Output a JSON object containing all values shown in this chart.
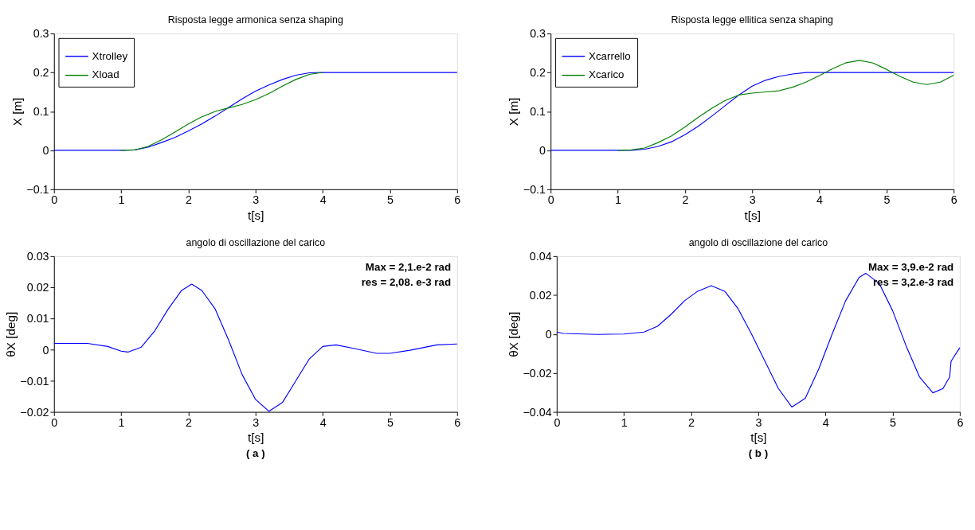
{
  "chart_data": [
    {
      "type": "line",
      "title": "Risposta legge armonica senza shaping",
      "xlabel": "t[s]",
      "ylabel": "X [m]",
      "xlim": [
        0,
        6
      ],
      "xticks": [
        0,
        1,
        2,
        3,
        4,
        5,
        6
      ],
      "ylim": [
        -0.1,
        0.3
      ],
      "yticks": [
        -0.1,
        0,
        0.1,
        0.2,
        0.3
      ],
      "grid": false,
      "legend": "top left",
      "x": [
        0,
        0.5,
        1,
        1.2,
        1.4,
        1.6,
        1.8,
        2.0,
        2.2,
        2.4,
        2.6,
        2.8,
        3.0,
        3.2,
        3.4,
        3.6,
        3.8,
        4.0,
        5.0,
        6.0
      ],
      "series": [
        {
          "name": "Xtrolley",
          "color": "#0000ff",
          "values": [
            0,
            0,
            0,
            0.001,
            0.008,
            0.02,
            0.033,
            0.05,
            0.068,
            0.088,
            0.11,
            0.132,
            0.152,
            0.168,
            0.182,
            0.193,
            0.199,
            0.2,
            0.2,
            0.2
          ]
        },
        {
          "name": "Xload",
          "color": "#008000",
          "values": [
            null,
            null,
            0,
            0.001,
            0.01,
            0.027,
            0.047,
            0.068,
            0.086,
            0.1,
            0.109,
            0.118,
            0.13,
            0.146,
            0.165,
            0.182,
            0.195,
            0.2,
            null,
            null
          ]
        }
      ]
    },
    {
      "type": "line",
      "title": "Risposta legge ellitica senza shaping",
      "xlabel": "t[s]",
      "ylabel": "X [m]",
      "xlim": [
        0,
        6
      ],
      "xticks": [
        0,
        1,
        2,
        3,
        4,
        5,
        6
      ],
      "ylim": [
        -0.1,
        0.3
      ],
      "yticks": [
        -0.1,
        0,
        0.1,
        0.2,
        0.3
      ],
      "grid": false,
      "legend": "top left",
      "x": [
        0,
        0.5,
        1.0,
        1.2,
        1.4,
        1.6,
        1.8,
        2.0,
        2.2,
        2.4,
        2.6,
        2.8,
        3.0,
        3.2,
        3.4,
        3.6,
        3.8,
        4.0,
        4.2,
        4.4,
        4.6,
        4.8,
        5.0,
        5.2,
        5.4,
        5.6,
        5.8,
        6.0
      ],
      "series": [
        {
          "name": "Xcarrello",
          "color": "#0000ff",
          "values": [
            0,
            0,
            0,
            0,
            0.003,
            0.01,
            0.022,
            0.04,
            0.062,
            0.088,
            0.115,
            0.142,
            0.165,
            0.18,
            0.19,
            0.196,
            0.2,
            0.2,
            0.2,
            0.2,
            0.2,
            0.2,
            0.2,
            0.2,
            0.2,
            0.2,
            0.2,
            0.2
          ]
        },
        {
          "name": "Xcarico",
          "color": "#008000",
          "values": [
            null,
            null,
            0,
            0.001,
            0.006,
            0.02,
            0.037,
            0.06,
            0.085,
            0.108,
            0.128,
            0.142,
            0.147,
            0.15,
            0.153,
            0.162,
            0.175,
            0.192,
            0.21,
            0.225,
            0.231,
            0.224,
            0.208,
            0.19,
            0.175,
            0.169,
            0.175,
            0.193
          ]
        }
      ]
    },
    {
      "type": "line",
      "title": "angolo di oscillazione del carico",
      "xlabel": "t[s]",
      "ylabel": "θX [deg]",
      "xlim": [
        0,
        6
      ],
      "xticks": [
        0,
        1,
        2,
        3,
        4,
        5,
        6
      ],
      "ylim": [
        -0.02,
        0.03
      ],
      "yticks": [
        -0.02,
        -0.01,
        0,
        0.01,
        0.02,
        0.03
      ],
      "grid": false,
      "annotations": [
        "Max  = 2,1.e-2 rad",
        "res  =  2,08. e-3 rad",
        "( a )"
      ],
      "x": [
        0,
        0.5,
        0.8,
        1.0,
        1.1,
        1.3,
        1.5,
        1.7,
        1.9,
        2.05,
        2.2,
        2.4,
        2.6,
        2.8,
        3.0,
        3.2,
        3.4,
        3.6,
        3.8,
        4.0,
        4.2,
        4.5,
        4.8,
        5.0,
        5.3,
        5.7,
        6.0
      ],
      "series": [
        {
          "color": "#0000ff",
          "values": [
            0.002,
            0.002,
            0.001,
            -0.0005,
            -0.0008,
            0.0008,
            0.006,
            0.013,
            0.019,
            0.021,
            0.019,
            0.013,
            0.003,
            -0.008,
            -0.016,
            -0.0198,
            -0.017,
            -0.01,
            -0.003,
            0.001,
            0.0015,
            0.0002,
            -0.0012,
            -0.0012,
            -0.0002,
            0.0015,
            0.0018
          ]
        }
      ]
    },
    {
      "type": "line",
      "title": "angolo di oscillazione del carico",
      "xlabel": "t[s]",
      "ylabel": "θX [deg]",
      "xlim": [
        0,
        6
      ],
      "xticks": [
        0,
        1,
        2,
        3,
        4,
        5,
        6
      ],
      "ylim": [
        -0.04,
        0.04
      ],
      "yticks": [
        -0.04,
        -0.02,
        0,
        0.02,
        0.04
      ],
      "grid": false,
      "annotations": [
        "Max  = 3,9.e-2 rad",
        "res  =  3,2.e-3 rad",
        "( b )"
      ],
      "x": [
        0,
        0.1,
        0.6,
        1.0,
        1.3,
        1.5,
        1.7,
        1.9,
        2.1,
        2.3,
        2.5,
        2.7,
        2.9,
        3.1,
        3.3,
        3.5,
        3.7,
        3.9,
        4.1,
        4.3,
        4.5,
        4.6,
        4.8,
        5.0,
        5.2,
        5.4,
        5.6,
        5.75,
        5.85,
        5.87,
        6.0
      ],
      "series": [
        {
          "color": "#0000ff",
          "values": [
            0.001,
            0.0003,
            -0.0002,
            0,
            0.001,
            0.004,
            0.01,
            0.017,
            0.022,
            0.0248,
            0.022,
            0.013,
            0.0,
            -0.014,
            -0.028,
            -0.0375,
            -0.033,
            -0.018,
            0.0,
            0.017,
            0.029,
            0.0312,
            0.026,
            0.012,
            -0.006,
            -0.022,
            -0.0302,
            -0.028,
            -0.022,
            -0.014,
            -0.007
          ]
        }
      ]
    }
  ]
}
